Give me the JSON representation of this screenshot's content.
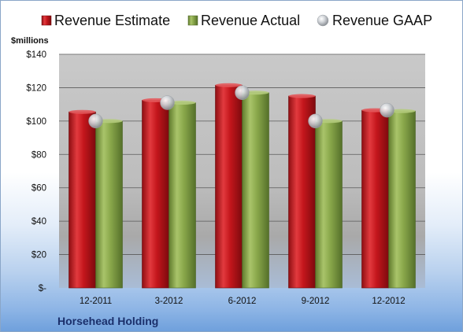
{
  "chart_data": {
    "type": "bar",
    "company": "Horsehead Holding",
    "ylabel": "$millions",
    "ylim": [
      0,
      140
    ],
    "yticks": [
      {
        "value": 0,
        "label": "$-"
      },
      {
        "value": 20,
        "label": "$20"
      },
      {
        "value": 40,
        "label": "$40"
      },
      {
        "value": 60,
        "label": "$60"
      },
      {
        "value": 80,
        "label": "$80"
      },
      {
        "value": 100,
        "label": "$100"
      },
      {
        "value": 120,
        "label": "$120"
      },
      {
        "value": 140,
        "label": "$140"
      }
    ],
    "categories": [
      "12-2011",
      "3-2012",
      "6-2012",
      "9-2012",
      "12-2012"
    ],
    "series": [
      {
        "name": "Revenue Estimate",
        "kind": "bar",
        "color": "#c4161c",
        "values": [
          105.5,
          112.5,
          121.5,
          115,
          106.5
        ]
      },
      {
        "name": "Revenue Actual",
        "kind": "bar",
        "color": "#8aa84b",
        "values": [
          100,
          111,
          117,
          100,
          106
        ]
      },
      {
        "name": "Revenue GAAP",
        "kind": "marker",
        "color": "#b8bcc2",
        "values": [
          100,
          111,
          117,
          100,
          106.5
        ]
      }
    ],
    "legend_position": "top",
    "grid": true
  }
}
